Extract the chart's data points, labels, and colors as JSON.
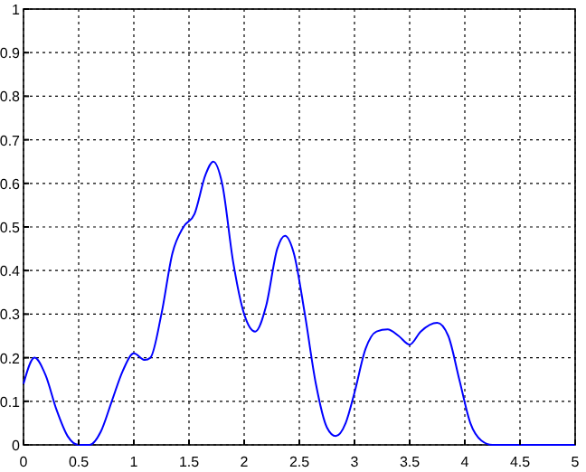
{
  "chart_data": {
    "type": "line",
    "x": [
      0,
      0.1,
      0.2,
      0.3,
      0.4,
      0.5,
      0.6,
      0.7,
      0.8,
      0.9,
      1.0,
      1.1,
      1.15,
      1.25,
      1.35,
      1.45,
      1.55,
      1.65,
      1.72,
      1.8,
      1.9,
      2.0,
      2.1,
      2.2,
      2.3,
      2.37,
      2.45,
      2.55,
      2.65,
      2.75,
      2.83,
      2.92,
      3.0,
      3.1,
      3.2,
      3.3,
      3.4,
      3.5,
      3.6,
      3.75,
      3.85,
      3.95,
      4.05,
      4.15,
      4.25,
      4.5,
      5
    ],
    "series": [
      {
        "color": "#0000ff",
        "values": [
          0.14,
          0.2,
          0.16,
          0.08,
          0.02,
          0.0,
          0.0,
          0.03,
          0.1,
          0.17,
          0.21,
          0.195,
          0.2,
          0.3,
          0.44,
          0.5,
          0.53,
          0.62,
          0.65,
          0.6,
          0.42,
          0.3,
          0.26,
          0.32,
          0.45,
          0.48,
          0.44,
          0.3,
          0.14,
          0.04,
          0.02,
          0.05,
          0.12,
          0.22,
          0.26,
          0.265,
          0.25,
          0.23,
          0.26,
          0.28,
          0.25,
          0.15,
          0.05,
          0.01,
          0.0,
          0,
          0
        ]
      }
    ],
    "xlim": [
      0,
      5
    ],
    "xticks": [
      0,
      0.5,
      1,
      1.5,
      2,
      2.5,
      3,
      3.5,
      4,
      4.5,
      5
    ],
    "ylim": [
      0,
      1
    ],
    "yticks": [
      0,
      0.1,
      0.2,
      0.3,
      0.4,
      0.5,
      0.6,
      0.7,
      0.8,
      0.9,
      1
    ],
    "grid": true,
    "line_style": "solid"
  }
}
